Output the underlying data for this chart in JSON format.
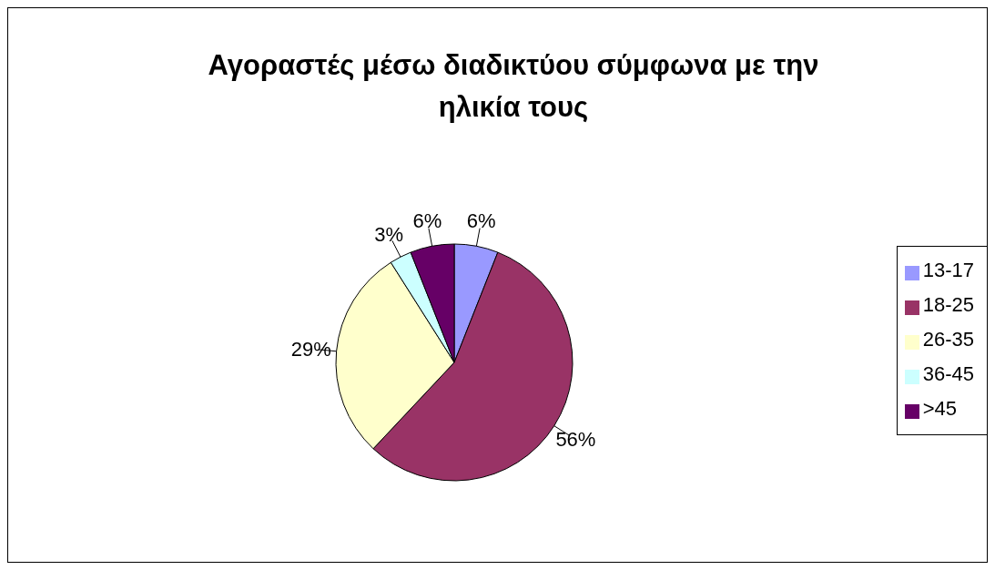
{
  "chart_data": {
    "type": "pie",
    "title": "Αγοραστές μέσω διαδικτύου σύμφωνα με την ηλικία τους",
    "categories": [
      "13-17",
      "18-25",
      "26-35",
      "36-45",
      ">45"
    ],
    "values": [
      6,
      56,
      29,
      3,
      6
    ],
    "colors": [
      "#9999ff",
      "#993366",
      "#ffffcc",
      "#ccffff",
      "#660066"
    ],
    "value_labels": [
      "6%",
      "56%",
      "29%",
      "3%",
      "6%"
    ],
    "legend": "right"
  }
}
